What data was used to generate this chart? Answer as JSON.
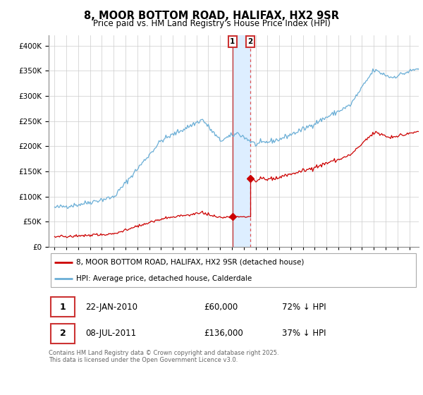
{
  "title": "8, MOOR BOTTOM ROAD, HALIFAX, HX2 9SR",
  "subtitle": "Price paid vs. HM Land Registry's House Price Index (HPI)",
  "legend_line1": "8, MOOR BOTTOM ROAD, HALIFAX, HX2 9SR (detached house)",
  "legend_line2": "HPI: Average price, detached house, Calderdale",
  "purchase1_date": "22-JAN-2010",
  "purchase1_price": 60000,
  "purchase1_label": "1",
  "purchase1_hpi_text": "72% ↓ HPI",
  "purchase2_date": "08-JUL-2011",
  "purchase2_price": 136000,
  "purchase2_label": "2",
  "purchase2_hpi_text": "37% ↓ HPI",
  "footer": "Contains HM Land Registry data © Crown copyright and database right 2025.\nThis data is licensed under the Open Government Licence v3.0.",
  "hpi_color": "#6aaed6",
  "price_color": "#cc0000",
  "vline1_color": "#cc3333",
  "vline2_color": "#dd5555",
  "shade_color": "#ddeeff",
  "badge1_edge": "#cc3333",
  "badge2_edge": "#cc3333",
  "ylim": [
    0,
    420000
  ],
  "yticks": [
    0,
    50000,
    100000,
    150000,
    200000,
    250000,
    300000,
    350000,
    400000
  ],
  "xlim_left": 1994.5,
  "xlim_right": 2025.8,
  "t1": 2010.055,
  "t2": 2011.54,
  "hpi_seed": 42,
  "noise_scale_hpi": 2500,
  "noise_scale_prop": 1200
}
